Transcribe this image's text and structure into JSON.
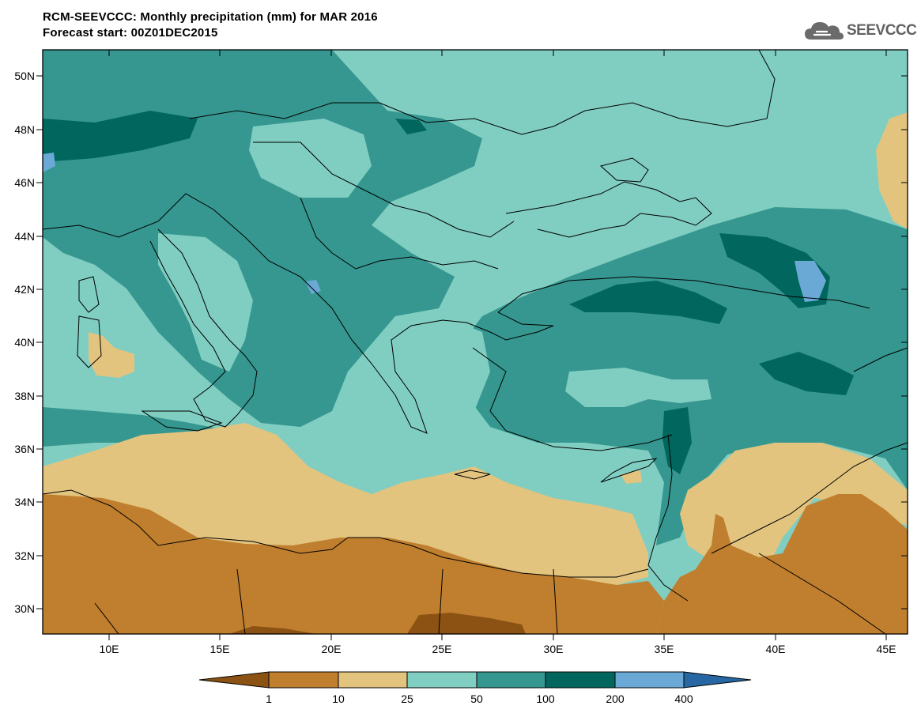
{
  "header": {
    "title_line1": "RCM-SEEVCCC: Monthly precipitation (mm) for MAR 2016",
    "title_line2": "Forecast start: 00Z01DEC2015",
    "logo_text": "SEEVCCC"
  },
  "map": {
    "lat_ticks": [
      "50N",
      "48N",
      "46N",
      "44N",
      "42N",
      "40N",
      "38N",
      "36N",
      "34N",
      "32N",
      "30N"
    ],
    "lon_ticks": [
      "10E",
      "15E",
      "20E",
      "25E",
      "30E",
      "35E",
      "40E",
      "45E"
    ]
  },
  "colorbar": {
    "labels": [
      "1",
      "10",
      "25",
      "50",
      "100",
      "200",
      "400"
    ],
    "colors": [
      "#8b5213",
      "#c07f2e",
      "#e2c47f",
      "#80cdc1",
      "#35978f",
      "#01665e",
      "#6aa9d6",
      "#2767a4"
    ]
  }
}
